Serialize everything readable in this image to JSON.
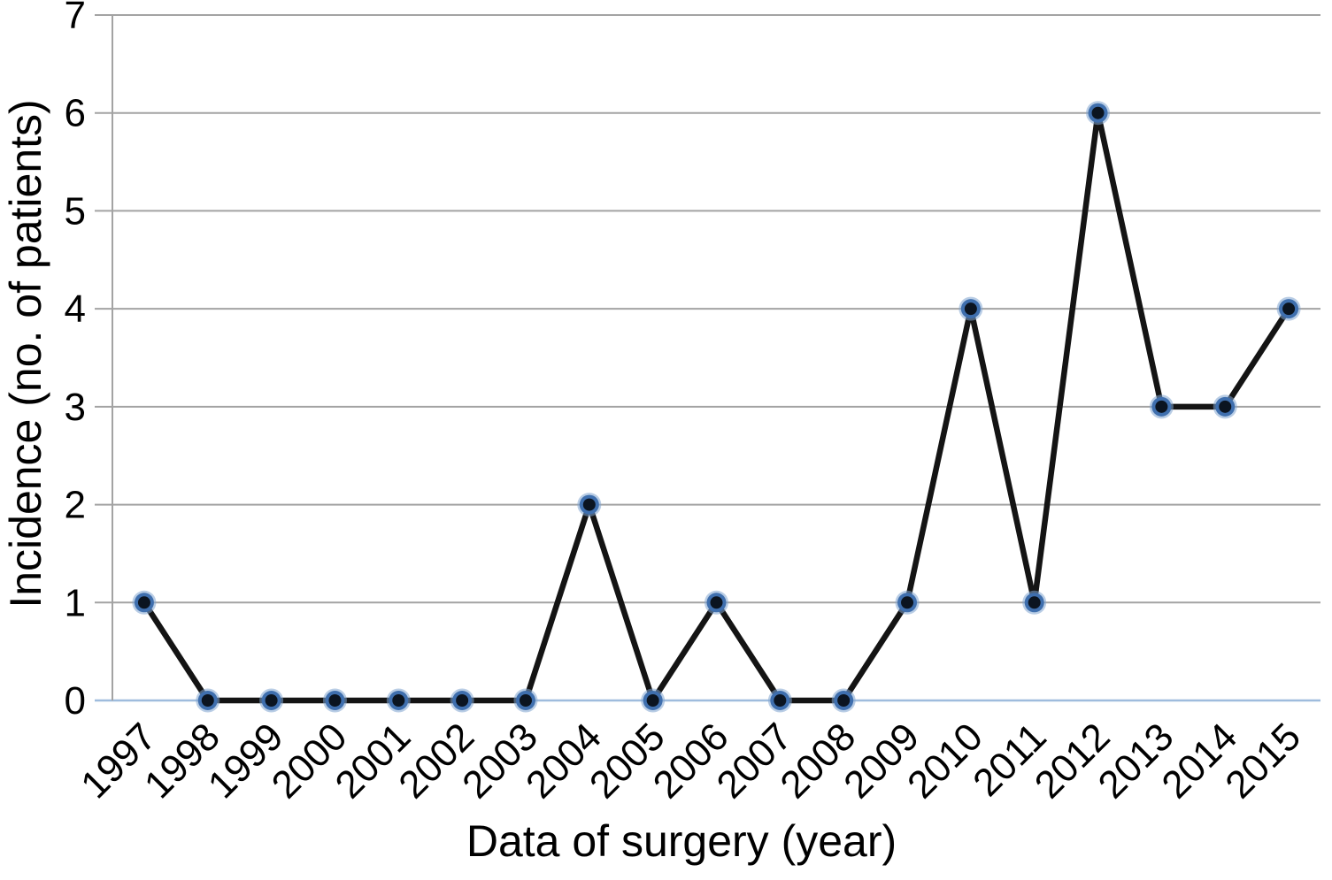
{
  "chart_data": {
    "type": "line",
    "title": "",
    "xlabel": "Data of surgery (year)",
    "ylabel": "Incidence (no. of patients)",
    "x": [
      "1997",
      "1998",
      "1999",
      "2000",
      "2001",
      "2002",
      "2003",
      "2004",
      "2005",
      "2006",
      "2007",
      "2008",
      "2009",
      "2010",
      "2011",
      "2012",
      "2013",
      "2014",
      "2015"
    ],
    "series": [
      {
        "name": "Incidence (no. of patients)",
        "values": [
          1,
          0,
          0,
          0,
          0,
          0,
          0,
          2,
          0,
          1,
          0,
          0,
          1,
          4,
          1,
          6,
          3,
          3,
          4
        ]
      }
    ],
    "ylim": [
      0,
      7
    ],
    "yticks": [
      0,
      1,
      2,
      3,
      4,
      5,
      6,
      7
    ],
    "grid": "horizontal",
    "legend_position": "none",
    "colors": {
      "line": "#141414",
      "marker_core": "#0b1420",
      "marker_ring": "#3f6fae",
      "marker_halo": "#7fa4cf",
      "gridline": "#a3a3a3",
      "axis_line": "#a3a3a3",
      "zero_line": "#9fbcdd",
      "text": "#000000",
      "background": "#ffffff"
    }
  }
}
